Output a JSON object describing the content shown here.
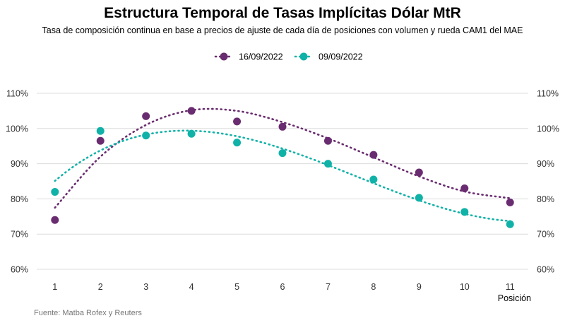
{
  "chart_data": {
    "type": "scatter",
    "title": "Estructura Temporal de Tasas Implícitas Dólar MtR",
    "subtitle": "Tasa de composición continua en base a precios de ajuste de cada día de posiciones con volumen y rueda CAM1 del MAE",
    "xlabel": "Posición",
    "ylabel": "",
    "source": "Fuente: Matba Rofex y Reuters",
    "x": [
      1,
      2,
      3,
      4,
      5,
      6,
      7,
      8,
      9,
      10,
      11
    ],
    "xlim": [
      0.6,
      11.4
    ],
    "ylim": [
      60,
      110
    ],
    "y_ticks": [
      60,
      70,
      80,
      90,
      100,
      110
    ],
    "y_tick_labels": [
      "60%",
      "70%",
      "80%",
      "90%",
      "100%",
      "110%"
    ],
    "x_tick_labels": [
      "1",
      "2",
      "3",
      "4",
      "5",
      "6",
      "7",
      "8",
      "9",
      "10",
      "11"
    ],
    "grid": "horizontal",
    "legend_position": "top-center",
    "trendline": "dotted polynomial fit",
    "series": [
      {
        "name": "16/09/2022",
        "color": "#6a2c70",
        "values": [
          74,
          96.5,
          103.5,
          105,
          102,
          100.5,
          96.5,
          92.5,
          87.5,
          83,
          79
        ],
        "trend": [
          77.5,
          92,
          101,
          105.2,
          105,
          101.8,
          97.2,
          91.8,
          86.4,
          82.1,
          80.2
        ]
      },
      {
        "name": "09/09/2022",
        "color": "#10b2a8",
        "values": [
          82,
          99.3,
          98,
          98.5,
          96,
          93,
          90,
          85.5,
          80.3,
          76.3,
          72.8
        ]
      }
    ]
  }
}
